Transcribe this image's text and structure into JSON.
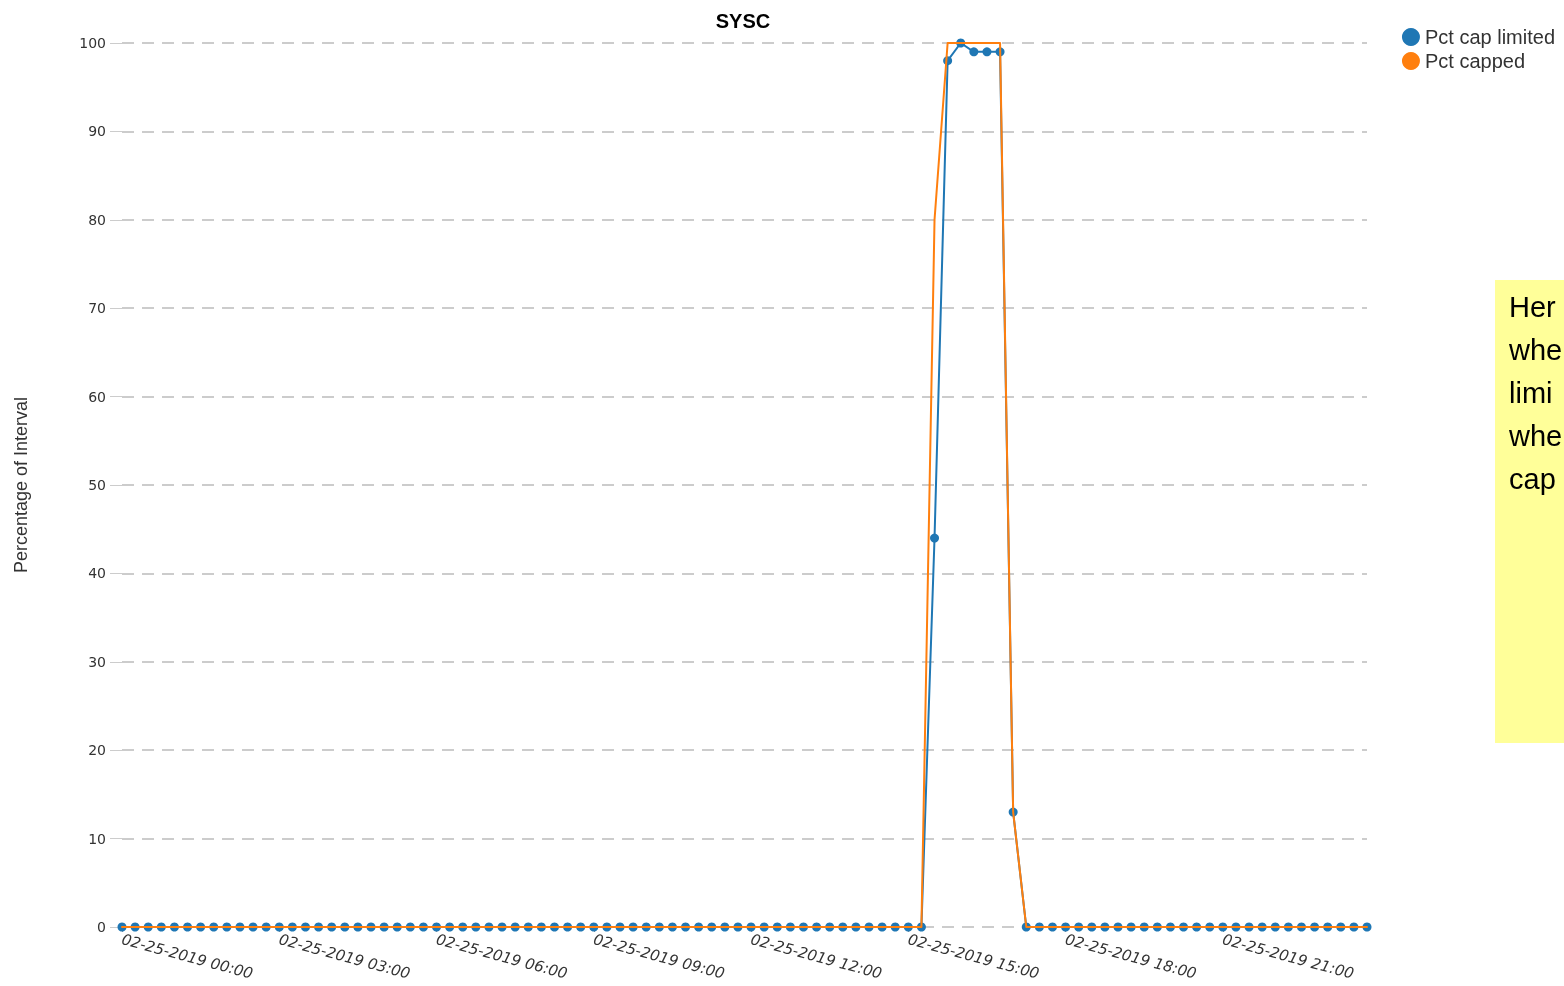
{
  "chart_data": {
    "type": "line",
    "title": "SYSC",
    "ylabel": "Percentage of Interval",
    "annotations": [
      "Her\nwhe\nlimi\nwhe\ncap"
    ],
    "x": [
      "2019-02-25T00:00",
      "2019-02-25T00:15",
      "2019-02-25T00:30",
      "2019-02-25T00:45",
      "2019-02-25T01:00",
      "2019-02-25T01:15",
      "2019-02-25T01:30",
      "2019-02-25T01:45",
      "2019-02-25T02:00",
      "2019-02-25T02:15",
      "2019-02-25T02:30",
      "2019-02-25T02:45",
      "2019-02-25T03:00",
      "2019-02-25T03:15",
      "2019-02-25T03:30",
      "2019-02-25T03:45",
      "2019-02-25T04:00",
      "2019-02-25T04:15",
      "2019-02-25T04:30",
      "2019-02-25T04:45",
      "2019-02-25T05:00",
      "2019-02-25T05:15",
      "2019-02-25T05:30",
      "2019-02-25T05:45",
      "2019-02-25T06:00",
      "2019-02-25T06:15",
      "2019-02-25T06:30",
      "2019-02-25T06:45",
      "2019-02-25T07:00",
      "2019-02-25T07:15",
      "2019-02-25T07:30",
      "2019-02-25T07:45",
      "2019-02-25T08:00",
      "2019-02-25T08:15",
      "2019-02-25T08:30",
      "2019-02-25T08:45",
      "2019-02-25T09:00",
      "2019-02-25T09:15",
      "2019-02-25T09:30",
      "2019-02-25T09:45",
      "2019-02-25T10:00",
      "2019-02-25T10:15",
      "2019-02-25T10:30",
      "2019-02-25T10:45",
      "2019-02-25T11:00",
      "2019-02-25T11:15",
      "2019-02-25T11:30",
      "2019-02-25T11:45",
      "2019-02-25T12:00",
      "2019-02-25T12:15",
      "2019-02-25T12:30",
      "2019-02-25T12:45",
      "2019-02-25T13:00",
      "2019-02-25T13:15",
      "2019-02-25T13:30",
      "2019-02-25T13:45",
      "2019-02-25T14:00",
      "2019-02-25T14:15",
      "2019-02-25T14:30",
      "2019-02-25T14:45",
      "2019-02-25T15:00",
      "2019-02-25T15:15",
      "2019-02-25T15:30",
      "2019-02-25T15:45",
      "2019-02-25T16:00",
      "2019-02-25T16:15",
      "2019-02-25T16:30",
      "2019-02-25T16:45",
      "2019-02-25T17:00",
      "2019-02-25T17:15",
      "2019-02-25T17:30",
      "2019-02-25T17:45",
      "2019-02-25T18:00",
      "2019-02-25T18:15",
      "2019-02-25T18:30",
      "2019-02-25T18:45",
      "2019-02-25T19:00",
      "2019-02-25T19:15",
      "2019-02-25T19:30",
      "2019-02-25T19:45",
      "2019-02-25T20:00",
      "2019-02-25T20:15",
      "2019-02-25T20:30",
      "2019-02-25T20:45",
      "2019-02-25T21:00",
      "2019-02-25T21:15",
      "2019-02-25T21:30",
      "2019-02-25T21:45",
      "2019-02-25T22:00",
      "2019-02-25T22:15",
      "2019-02-25T22:30",
      "2019-02-25T22:45",
      "2019-02-25T23:00",
      "2019-02-25T23:15",
      "2019-02-25T23:30",
      "2019-02-25T23:45"
    ],
    "series": [
      {
        "name": "Pct cap limited",
        "color": "#1f77b4",
        "marker": "circle",
        "values": [
          0,
          0,
          0,
          0,
          0,
          0,
          0,
          0,
          0,
          0,
          0,
          0,
          0,
          0,
          0,
          0,
          0,
          0,
          0,
          0,
          0,
          0,
          0,
          0,
          0,
          0,
          0,
          0,
          0,
          0,
          0,
          0,
          0,
          0,
          0,
          0,
          0,
          0,
          0,
          0,
          0,
          0,
          0,
          0,
          0,
          0,
          0,
          0,
          0,
          0,
          0,
          0,
          0,
          0,
          0,
          0,
          0,
          0,
          0,
          0,
          0,
          0,
          44,
          98,
          100,
          99,
          99,
          99,
          13,
          0,
          0,
          0,
          0,
          0,
          0,
          0,
          0,
          0,
          0,
          0,
          0,
          0,
          0,
          0,
          0,
          0,
          0,
          0,
          0,
          0,
          0,
          0,
          0,
          0,
          0,
          0
        ]
      },
      {
        "name": "Pct capped",
        "color": "#ff7f0e",
        "marker": "none",
        "values": [
          0,
          0,
          0,
          0,
          0,
          0,
          0,
          0,
          0,
          0,
          0,
          0,
          0,
          0,
          0,
          0,
          0,
          0,
          0,
          0,
          0,
          0,
          0,
          0,
          0,
          0,
          0,
          0,
          0,
          0,
          0,
          0,
          0,
          0,
          0,
          0,
          0,
          0,
          0,
          0,
          0,
          0,
          0,
          0,
          0,
          0,
          0,
          0,
          0,
          0,
          0,
          0,
          0,
          0,
          0,
          0,
          0,
          0,
          0,
          0,
          0,
          0,
          80,
          100,
          100,
          100,
          100,
          100,
          13,
          0,
          0,
          0,
          0,
          0,
          0,
          0,
          0,
          0,
          0,
          0,
          0,
          0,
          0,
          0,
          0,
          0,
          0,
          0,
          0,
          0,
          0,
          0,
          0,
          0,
          0,
          0
        ]
      }
    ],
    "xlim": [
      "2019-02-25T00:00",
      "2019-02-25T23:45"
    ],
    "xticks": [
      {
        "value": "2019-02-25T00:00",
        "label": "02-25-2019 00:00"
      },
      {
        "value": "2019-02-25T03:00",
        "label": "02-25-2019 03:00"
      },
      {
        "value": "2019-02-25T06:00",
        "label": "02-25-2019 06:00"
      },
      {
        "value": "2019-02-25T09:00",
        "label": "02-25-2019 09:00"
      },
      {
        "value": "2019-02-25T12:00",
        "label": "02-25-2019 12:00"
      },
      {
        "value": "2019-02-25T15:00",
        "label": "02-25-2019 15:00"
      },
      {
        "value": "2019-02-25T18:00",
        "label": "02-25-2019 18:00"
      },
      {
        "value": "2019-02-25T21:00",
        "label": "02-25-2019 21:00"
      }
    ],
    "ylim": [
      0,
      100
    ],
    "yticks": [
      0,
      10,
      20,
      30,
      40,
      50,
      60,
      70,
      80,
      90,
      100
    ],
    "grid": "y",
    "legend": "top right"
  }
}
